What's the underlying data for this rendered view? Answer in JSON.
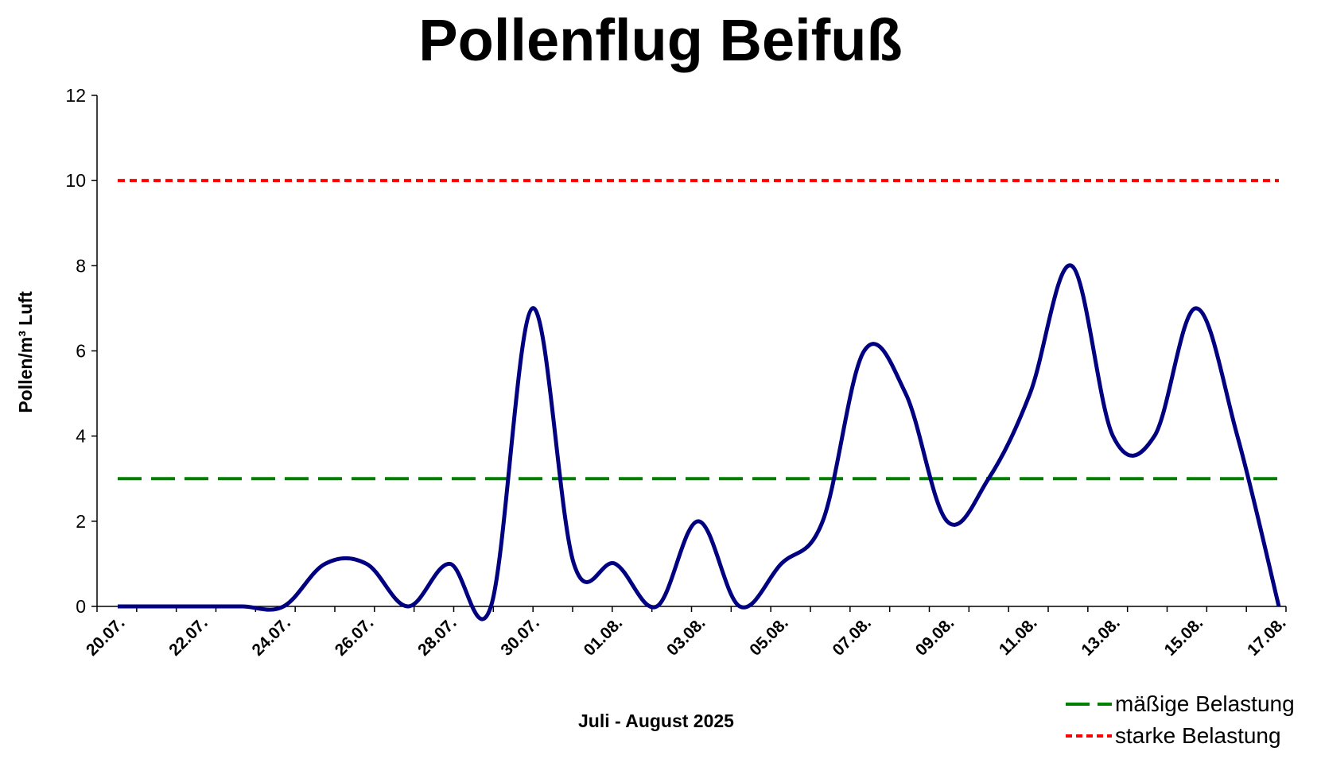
{
  "chart_data": {
    "type": "line",
    "title": "Pollenflug Beifuß",
    "xlabel": "Juli - August 2025",
    "ylabel": "Pollen/m³ Luft",
    "ylim": [
      0,
      12
    ],
    "yticks": [
      "0",
      "2",
      "4",
      "6",
      "8",
      "10",
      "12"
    ],
    "xtick_labels": [
      "20.07.",
      "22.07.",
      "24.07.",
      "26.07.",
      "28.07.",
      "30.07.",
      "01.08.",
      "03.08.",
      "05.08.",
      "07.08.",
      "09.08.",
      "11.08.",
      "13.08.",
      "15.08.",
      "17.08."
    ],
    "categories": [
      "20.07.",
      "21.07.",
      "22.07.",
      "23.07.",
      "24.07.",
      "25.07.",
      "26.07.",
      "27.07.",
      "28.07.",
      "29.07.",
      "30.07.",
      "31.07.",
      "01.08.",
      "02.08.",
      "03.08.",
      "04.08.",
      "05.08.",
      "06.08.",
      "07.08.",
      "08.08.",
      "09.08.",
      "10.08.",
      "11.08.",
      "12.08.",
      "13.08.",
      "14.08.",
      "15.08.",
      "16.08.",
      "17.08."
    ],
    "series": [
      {
        "color": "#000080",
        "values": [
          0,
          0,
          0,
          0,
          0,
          1,
          1,
          0,
          1,
          0,
          7,
          1,
          1,
          0,
          2,
          0,
          1,
          2,
          6,
          5,
          2,
          3,
          5,
          8,
          4,
          4,
          7,
          4,
          0
        ]
      }
    ],
    "reference_lines": [
      {
        "name": "mäßige Belastung",
        "value": 3,
        "color": "#008000",
        "style": "dashed"
      },
      {
        "name": "starke Belastung",
        "value": 10,
        "color": "#ff0000",
        "style": "dotted"
      }
    ],
    "legend_position": "bottom-right",
    "grid": false
  }
}
